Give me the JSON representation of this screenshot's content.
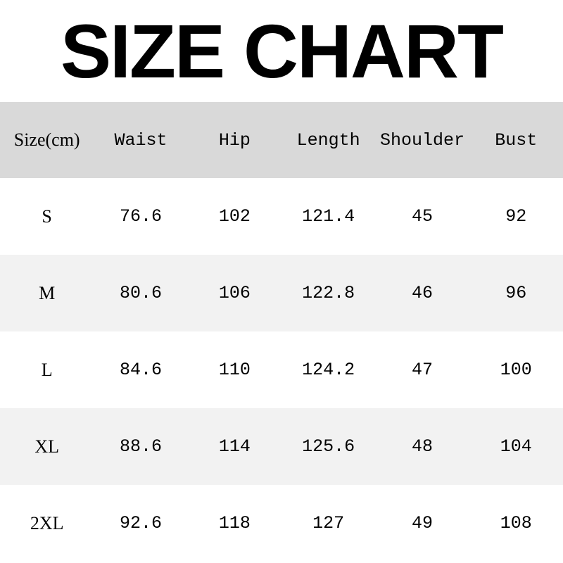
{
  "title": "SIZE CHART",
  "table": {
    "headers": [
      "Size(cm)",
      "Waist",
      "Hip",
      "Length",
      "Shoulder",
      "Bust"
    ],
    "rows": [
      [
        "S",
        "76.6",
        "102",
        "121.4",
        "45",
        "92"
      ],
      [
        "M",
        "80.6",
        "106",
        "122.8",
        "46",
        "96"
      ],
      [
        "L",
        "84.6",
        "110",
        "124.2",
        "47",
        "100"
      ],
      [
        "XL",
        "88.6",
        "114",
        "125.6",
        "48",
        "104"
      ],
      [
        "2XL",
        "92.6",
        "118",
        "127",
        "49",
        "108"
      ]
    ]
  },
  "colors": {
    "header_bg": "#d9d9d9",
    "alt_row_bg": "#f2f2f2",
    "row_bg": "#ffffff"
  }
}
